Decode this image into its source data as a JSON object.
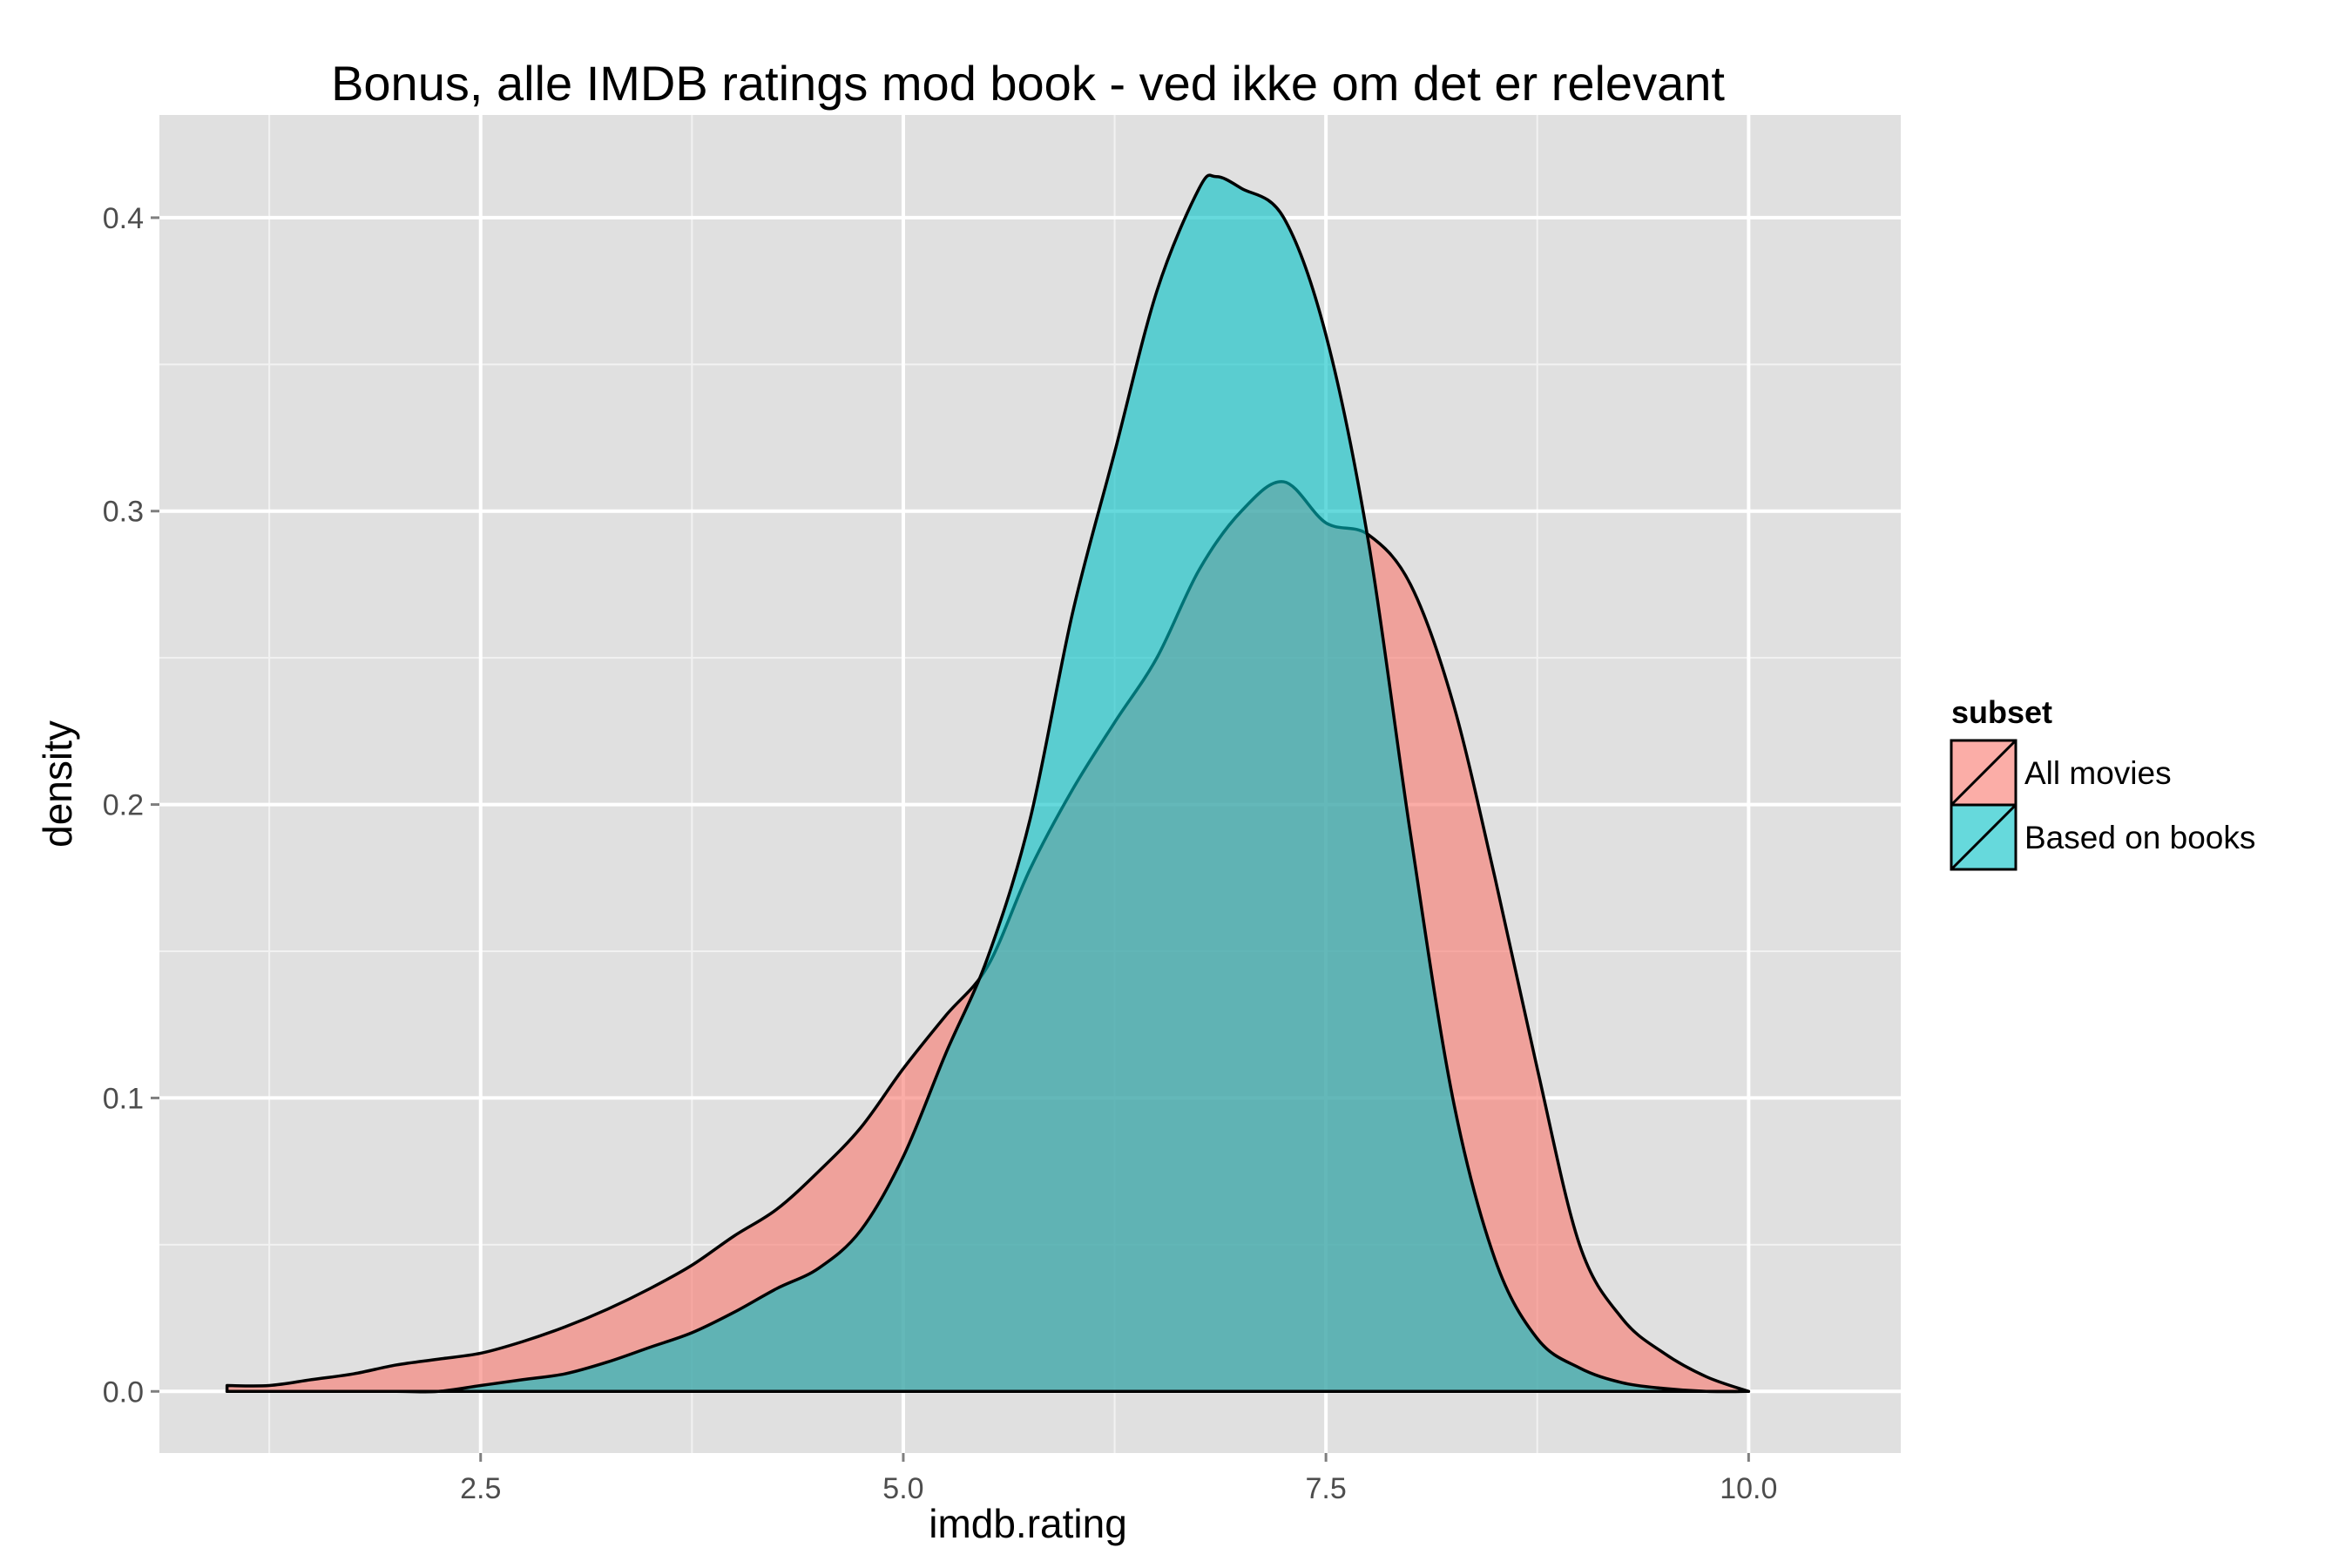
{
  "chart_data": {
    "type": "area",
    "title": "Bonus, alle IMDB ratings mod book - ved ikke om det er relevant",
    "xlabel": "imdb.rating",
    "ylabel": "density",
    "xlim": [
      0.6,
      10.9
    ],
    "ylim": [
      -0.021,
      0.435
    ],
    "x_ticks": [
      2.5,
      5.0,
      7.5,
      10.0
    ],
    "x_tick_labels": [
      "2.5",
      "5.0",
      "7.5",
      "10.0"
    ],
    "y_ticks": [
      0.0,
      0.1,
      0.2,
      0.3,
      0.4
    ],
    "y_tick_labels": [
      "0.0",
      "0.1",
      "0.2",
      "0.3",
      "0.4"
    ],
    "grid": true,
    "legend": {
      "title": "subset",
      "position": "right"
    },
    "series": [
      {
        "name": "All movies",
        "color": "#F8766D",
        "fill_opacity": 0.6,
        "x": [
          1.0,
          1.25,
          1.5,
          1.75,
          2.0,
          2.25,
          2.5,
          2.75,
          3.0,
          3.25,
          3.5,
          3.75,
          4.0,
          4.25,
          4.5,
          4.75,
          5.0,
          5.25,
          5.5,
          5.75,
          6.0,
          6.25,
          6.5,
          6.75,
          7.0,
          7.25,
          7.5,
          7.75,
          8.0,
          8.25,
          8.5,
          8.75,
          9.0,
          9.25,
          9.5,
          9.75,
          10.0
        ],
        "y": [
          0.002,
          0.002,
          0.004,
          0.006,
          0.009,
          0.011,
          0.013,
          0.017,
          0.022,
          0.028,
          0.035,
          0.043,
          0.053,
          0.062,
          0.075,
          0.09,
          0.11,
          0.128,
          0.145,
          0.178,
          0.205,
          0.228,
          0.25,
          0.28,
          0.3,
          0.31,
          0.296,
          0.292,
          0.275,
          0.235,
          0.175,
          0.11,
          0.05,
          0.025,
          0.013,
          0.005,
          0.0
        ]
      },
      {
        "name": "Based on books",
        "color": "#00BFC4",
        "fill_opacity": 0.6,
        "x": [
          1.0,
          1.5,
          2.0,
          2.25,
          2.5,
          2.75,
          3.0,
          3.25,
          3.5,
          3.75,
          4.0,
          4.25,
          4.5,
          4.75,
          5.0,
          5.25,
          5.5,
          5.75,
          6.0,
          6.25,
          6.5,
          6.75,
          6.85,
          7.0,
          7.25,
          7.5,
          7.75,
          8.0,
          8.25,
          8.5,
          8.75,
          9.0,
          9.25,
          9.5,
          9.75,
          10.0
        ],
        "y": [
          0.0,
          0.0,
          0.0,
          0.0,
          0.002,
          0.004,
          0.006,
          0.01,
          0.015,
          0.02,
          0.027,
          0.035,
          0.042,
          0.055,
          0.08,
          0.115,
          0.148,
          0.195,
          0.265,
          0.32,
          0.375,
          0.41,
          0.414,
          0.41,
          0.4,
          0.36,
          0.29,
          0.19,
          0.1,
          0.045,
          0.018,
          0.008,
          0.003,
          0.001,
          0.0,
          0.0
        ]
      }
    ]
  }
}
